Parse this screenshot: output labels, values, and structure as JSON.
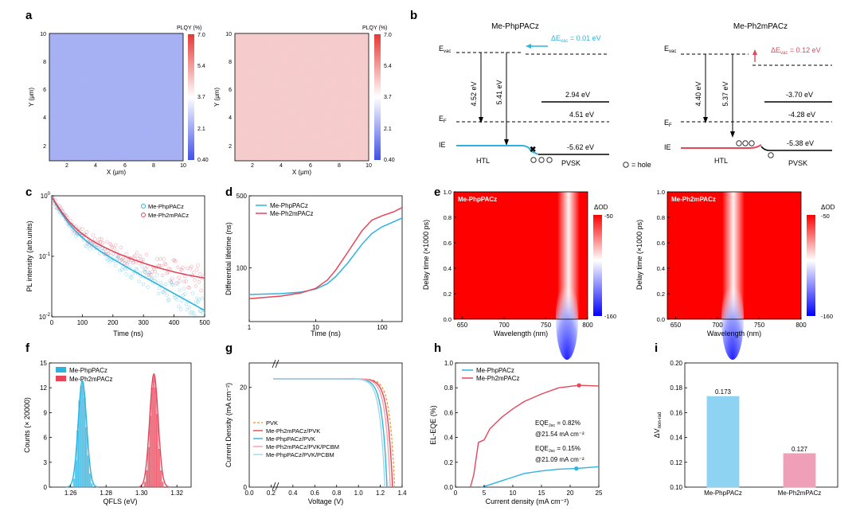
{
  "panel_letters": {
    "a": "a",
    "b": "b",
    "c": "c",
    "d": "d",
    "e": "e",
    "f": "f",
    "g": "g",
    "h": "h",
    "i": "i"
  },
  "colors": {
    "blue": "#2eb3e0",
    "red": "#e5465a",
    "map_blue": "#9ea9f2",
    "map_red": "#f4c6c6",
    "hole": "#333333"
  },
  "panel_a": {
    "maps": [
      {
        "ylabel": "Y (μm)",
        "xlabel": "X (μm)",
        "cbar_title": "PLQY (%)",
        "tone": "blue"
      },
      {
        "ylabel": "Y (μm)",
        "xlabel": "X (μm)",
        "cbar_title": "PLQY (%)",
        "tone": "red"
      }
    ],
    "x_ticks": [
      "2",
      "4",
      "6",
      "8",
      "10"
    ],
    "y_ticks": [
      "2",
      "4",
      "6",
      "8",
      "10"
    ],
    "cbar_ticks": [
      "7.0",
      "5.4",
      "3.7",
      "2.1",
      "0.40"
    ]
  },
  "panel_b": {
    "left": {
      "title": "Me-PhpPACz",
      "evac": "E",
      "evac_sub": "vac",
      "delta_label": "ΔE",
      "delta_sub": "vac",
      "delta_value": " = 0.01 eV",
      "ef": "E",
      "ef_sub": "F",
      "ie": "IE",
      "arrow1": "4.52 eV",
      "arrow2": "5.41 eV",
      "cb": "2.94 eV",
      "ef_val": "4.51 eV",
      "vb": "-5.62 eV",
      "htl": "HTL",
      "pvsk": "PVSK",
      "hole_legend": "= hole"
    },
    "right": {
      "title": "Me-Ph2mPACz",
      "evac": "E",
      "evac_sub": "vac",
      "delta_label": "ΔE",
      "delta_sub": "vac",
      "delta_value": " = 0.12 eV",
      "ef": "E",
      "ef_sub": "F",
      "ie": "IE",
      "arrow1": "4.40 eV",
      "arrow2": "5.37 eV",
      "cb": "-3.70 eV",
      "ef_val": "-4.28 eV",
      "vb": "-5.38 eV",
      "htl": "HTL",
      "pvsk": "PVSK"
    }
  },
  "panel_e": {
    "maps": [
      {
        "label": "Me-PhpPACz"
      },
      {
        "label": "Me-Ph2mPACz"
      }
    ],
    "ylabel": "Delay time (×1000 ps)",
    "xlabel": "Wavelength (nm)",
    "x_ticks": [
      "650",
      "700",
      "750",
      "800"
    ],
    "y_ticks": [
      "0.0",
      "0.2",
      "0.4",
      "0.6",
      "0.8",
      "1.0"
    ],
    "cbar_title": "ΔOD",
    "cbar_top": "-50",
    "cbar_bottom": "-160"
  },
  "chart_data": [
    {
      "panel": "c",
      "type": "scatter",
      "xlabel": "Time (ns)",
      "ylabel": "PL intensity (arb.units)",
      "x_scale": "linear",
      "y_scale": "log",
      "xlim": [
        0,
        500
      ],
      "ylim": [
        0.01,
        1
      ],
      "x_ticks": [
        "0",
        "100",
        "200",
        "300",
        "400",
        "500"
      ],
      "y_ticks": [
        "10^0",
        "10^-1",
        "10^-2"
      ],
      "legend_position": "top-right",
      "series": [
        {
          "name": "Me-PhpPACz",
          "color": "#2eb3e0",
          "fit": {
            "A1": 0.63,
            "tau1": 35,
            "A2": 0.32,
            "tau2": 155,
            "base": 0.0
          }
        },
        {
          "name": "Me-Ph2mPACz",
          "color": "#e5465a",
          "fit": {
            "A1": 0.63,
            "tau1": 35,
            "A2": 0.32,
            "tau2": 155,
            "base": 0.031
          }
        }
      ]
    },
    {
      "panel": "d",
      "type": "line",
      "xlabel": "Time (ns)",
      "ylabel": "Differential lifetime (ns)",
      "x_scale": "log",
      "y_scale": "log",
      "xlim": [
        1,
        200
      ],
      "ylim": [
        30,
        500
      ],
      "x_ticks": [
        "1",
        "10",
        "100"
      ],
      "y_ticks": [
        "100",
        "500"
      ],
      "legend_position": "top-left",
      "series": [
        {
          "name": "Me-PhpPACz",
          "color": "#2eb3e0",
          "x": [
            1,
            3,
            6,
            10,
            15,
            20,
            30,
            50,
            70,
            100,
            150,
            200
          ],
          "y": [
            55,
            56,
            58,
            62,
            70,
            82,
            110,
            170,
            215,
            250,
            280,
            305
          ]
        },
        {
          "name": "Me-Ph2mPACz",
          "color": "#e5465a",
          "x": [
            1,
            3,
            6,
            10,
            15,
            20,
            30,
            50,
            70,
            100,
            150,
            200
          ],
          "y": [
            50,
            53,
            57,
            63,
            76,
            95,
            140,
            230,
            290,
            320,
            350,
            385
          ]
        }
      ]
    },
    {
      "panel": "f",
      "type": "bar",
      "xlabel": "QFLS (eV)",
      "ylabel": "Counts (× 20000)",
      "xlim": [
        1.248,
        1.328
      ],
      "ylim": [
        0,
        15
      ],
      "x_ticks": [
        "1.26",
        "1.28",
        "1.30",
        "1.32"
      ],
      "y_ticks": [
        "0",
        "3",
        "6",
        "9",
        "12",
        "15"
      ],
      "legend_position": "top-left",
      "bin_width": 0.001,
      "series": [
        {
          "name": "Me-PhpPACz",
          "color": "#2eb3e0",
          "bins": [
            1.262,
            1.263,
            1.264,
            1.265,
            1.266,
            1.267,
            1.268,
            1.269,
            1.27,
            1.271,
            1.272
          ],
          "counts": [
            1.0,
            3.2,
            6.8,
            10.4,
            12.2,
            12.6,
            10.8,
            7.2,
            3.8,
            1.6,
            0.4
          ]
        },
        {
          "name": "Me-Ph2mPACz",
          "color": "#e5465a",
          "bins": [
            1.302,
            1.303,
            1.304,
            1.305,
            1.306,
            1.307,
            1.308,
            1.309,
            1.31,
            1.311,
            1.312
          ],
          "counts": [
            0.6,
            2.0,
            4.8,
            8.6,
            12.0,
            13.4,
            12.0,
            8.8,
            4.6,
            2.0,
            0.6
          ]
        }
      ]
    },
    {
      "panel": "g",
      "type": "line",
      "xlabel": "Voltage (V)",
      "ylabel": "Current Density (mA cm⁻²)",
      "x_ticks": [
        "0.0",
        "0.2",
        "0.4",
        "0.6",
        "0.8",
        "1.0",
        "1.2",
        "1.4"
      ],
      "y_ticks": [
        "0",
        "20"
      ],
      "xlim": [
        0,
        1.4
      ],
      "legend_position": "middle-left",
      "jsc": 21.8,
      "series": [
        {
          "name": "PVK",
          "color": "#f0a040",
          "dashed": true,
          "voc": 1.33
        },
        {
          "name": "Me-Ph2mPACz/PVK",
          "color": "#e5465a",
          "voc": 1.31
        },
        {
          "name": "Me-PhpPACz/PVK",
          "color": "#2eb3e0",
          "voc": 1.26
        },
        {
          "name": "Me-Ph2mPACz/PVK/PCBM",
          "color": "#f4a0ae",
          "voc": 1.29
        },
        {
          "name": "Me-PhpPACz/PVK/PCBM",
          "color": "#9fd8ef",
          "voc": 1.24
        }
      ]
    },
    {
      "panel": "h",
      "type": "line",
      "xlabel": "Current density (mA cm⁻²)",
      "ylabel": "EL-EQE (%)",
      "xlim": [
        0,
        25
      ],
      "ylim": [
        0,
        1.0
      ],
      "x_ticks": [
        "0",
        "5",
        "10",
        "15",
        "20",
        "25"
      ],
      "y_ticks": [
        "0.0",
        "0.2",
        "0.4",
        "0.6",
        "0.8",
        "1.0"
      ],
      "legend_position": "top-left",
      "annotations": [
        {
          "line1": "EQE",
          "sub": "Jsc",
          "value": " = 0.82%",
          "line2": "@21.54 mA cm⁻²"
        },
        {
          "line1": "EQE",
          "sub": "Jsc",
          "value": " = 0.15%",
          "line2": "@21.09 mA cm⁻²"
        }
      ],
      "series": [
        {
          "name": "Me-PhpPACz",
          "color": "#2eb3e0",
          "x": [
            4.5,
            6,
            8,
            10,
            12,
            15,
            18,
            21.09,
            25
          ],
          "y": [
            0,
            0.02,
            0.05,
            0.08,
            0.11,
            0.13,
            0.145,
            0.15,
            0.165
          ],
          "marker_x": 21.09,
          "marker_y": 0.15
        },
        {
          "name": "Me-Ph2mPACz",
          "color": "#e5465a",
          "x": [
            2.6,
            3.2,
            4,
            5,
            6,
            8,
            10,
            12,
            15,
            18,
            21.54,
            25
          ],
          "y": [
            0,
            0.1,
            0.36,
            0.38,
            0.47,
            0.56,
            0.63,
            0.69,
            0.75,
            0.8,
            0.82,
            0.815
          ],
          "marker_x": 21.54,
          "marker_y": 0.82
        }
      ]
    },
    {
      "panel": "i",
      "type": "bar",
      "ylabel": "ΔV",
      "ylabel_sub": "non-rad",
      "ylim": [
        0.1,
        0.2
      ],
      "y_ticks": [
        "0.10",
        "0.12",
        "0.14",
        "0.16",
        "0.18",
        "0.20"
      ],
      "categories": [
        "Me-PhpPACz",
        "Me-Ph2mPACz"
      ],
      "values": [
        0.173,
        0.127
      ],
      "value_labels": [
        "0.173",
        "0.127"
      ],
      "colors": [
        "#8fd3f3",
        "#ef9fb8"
      ]
    }
  ]
}
